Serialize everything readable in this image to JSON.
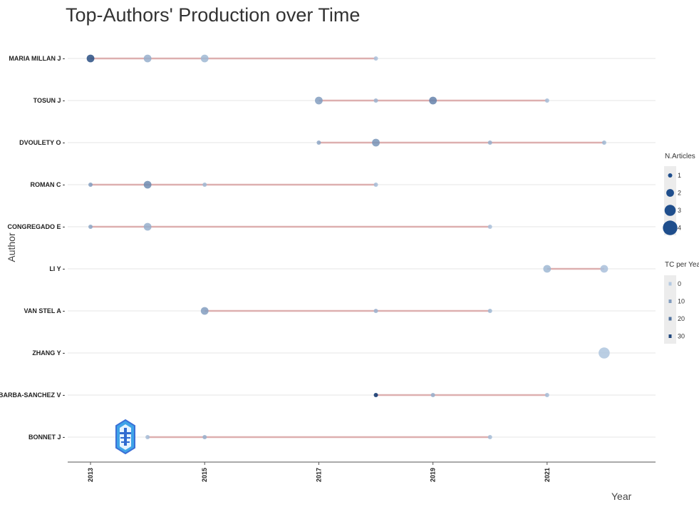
{
  "chart_data": {
    "type": "scatter",
    "title": "Top-Authors' Production over Time",
    "xlabel": "Year",
    "ylabel": "Author",
    "x_ticks": [
      "2013",
      "2015",
      "2017",
      "2019",
      "2021"
    ],
    "xlim": [
      2012.6,
      2022.9
    ],
    "authors": [
      "MARIA MILLAN J",
      "TOSUN J",
      "DVOULETY O",
      "ROMAN C",
      "CONGREGADO E",
      "LI Y",
      "VAN STEL A",
      "ZHANG Y",
      "BARBA-SANCHEZ V",
      "BONNET J"
    ],
    "grid": "horizontal",
    "legend_placement": "right",
    "series": [
      {
        "author": "MARIA MILLAN J",
        "points": [
          {
            "year": 2013,
            "articles": 2,
            "tc": 28
          },
          {
            "year": 2014,
            "articles": 2,
            "tc": 6
          },
          {
            "year": 2015,
            "articles": 2,
            "tc": 4
          },
          {
            "year": 2018,
            "articles": 1,
            "tc": 2
          }
        ]
      },
      {
        "author": "TOSUN J",
        "points": [
          {
            "year": 2017,
            "articles": 2,
            "tc": 10
          },
          {
            "year": 2018,
            "articles": 1,
            "tc": 5
          },
          {
            "year": 2019,
            "articles": 2,
            "tc": 16
          },
          {
            "year": 2021,
            "articles": 1,
            "tc": 3
          }
        ]
      },
      {
        "author": "DVOULETY O",
        "points": [
          {
            "year": 2017,
            "articles": 1,
            "tc": 8
          },
          {
            "year": 2018,
            "articles": 2,
            "tc": 12
          },
          {
            "year": 2020,
            "articles": 1,
            "tc": 6
          },
          {
            "year": 2022,
            "articles": 1,
            "tc": 4
          }
        ]
      },
      {
        "author": "ROMAN C",
        "points": [
          {
            "year": 2013,
            "articles": 1,
            "tc": 10
          },
          {
            "year": 2014,
            "articles": 2,
            "tc": 14
          },
          {
            "year": 2015,
            "articles": 1,
            "tc": 4
          },
          {
            "year": 2018,
            "articles": 1,
            "tc": 3
          }
        ]
      },
      {
        "author": "CONGREGADO E",
        "points": [
          {
            "year": 2013,
            "articles": 1,
            "tc": 8
          },
          {
            "year": 2014,
            "articles": 2,
            "tc": 6
          },
          {
            "year": 2020,
            "articles": 1,
            "tc": 2
          }
        ]
      },
      {
        "author": "LI Y",
        "points": [
          {
            "year": 2021,
            "articles": 2,
            "tc": 4
          },
          {
            "year": 2022,
            "articles": 2,
            "tc": 2
          }
        ]
      },
      {
        "author": "VAN STEL A",
        "points": [
          {
            "year": 2015,
            "articles": 2,
            "tc": 10
          },
          {
            "year": 2018,
            "articles": 1,
            "tc": 5
          },
          {
            "year": 2020,
            "articles": 1,
            "tc": 4
          }
        ]
      },
      {
        "author": "ZHANG Y",
        "points": [
          {
            "year": 2022,
            "articles": 3,
            "tc": 1
          }
        ]
      },
      {
        "author": "BARBA-SANCHEZ V",
        "points": [
          {
            "year": 2018,
            "articles": 1,
            "tc": 35
          },
          {
            "year": 2019,
            "articles": 1,
            "tc": 6
          },
          {
            "year": 2021,
            "articles": 1,
            "tc": 3
          }
        ]
      },
      {
        "author": "BONNET J",
        "points": [
          {
            "year": 2014,
            "articles": 1,
            "tc": 3
          },
          {
            "year": 2015,
            "articles": 1,
            "tc": 6
          },
          {
            "year": 2020,
            "articles": 1,
            "tc": 3
          }
        ]
      }
    ],
    "legend_size": {
      "title": "N.Articles",
      "values": [
        1,
        2,
        3,
        4
      ],
      "labels": [
        "1",
        "2",
        "3",
        "4"
      ]
    },
    "legend_color": {
      "title": "TC per Year",
      "values": [
        0,
        10,
        20,
        30
      ],
      "labels": [
        "0",
        "10",
        "20",
        "30"
      ]
    },
    "colors": {
      "segment": "#d9a3a3",
      "grid": "#e5e5e5",
      "low": "#b3c9e1",
      "high": "#08306b",
      "legend_bg": "#ececec",
      "axis": "#555555"
    }
  }
}
